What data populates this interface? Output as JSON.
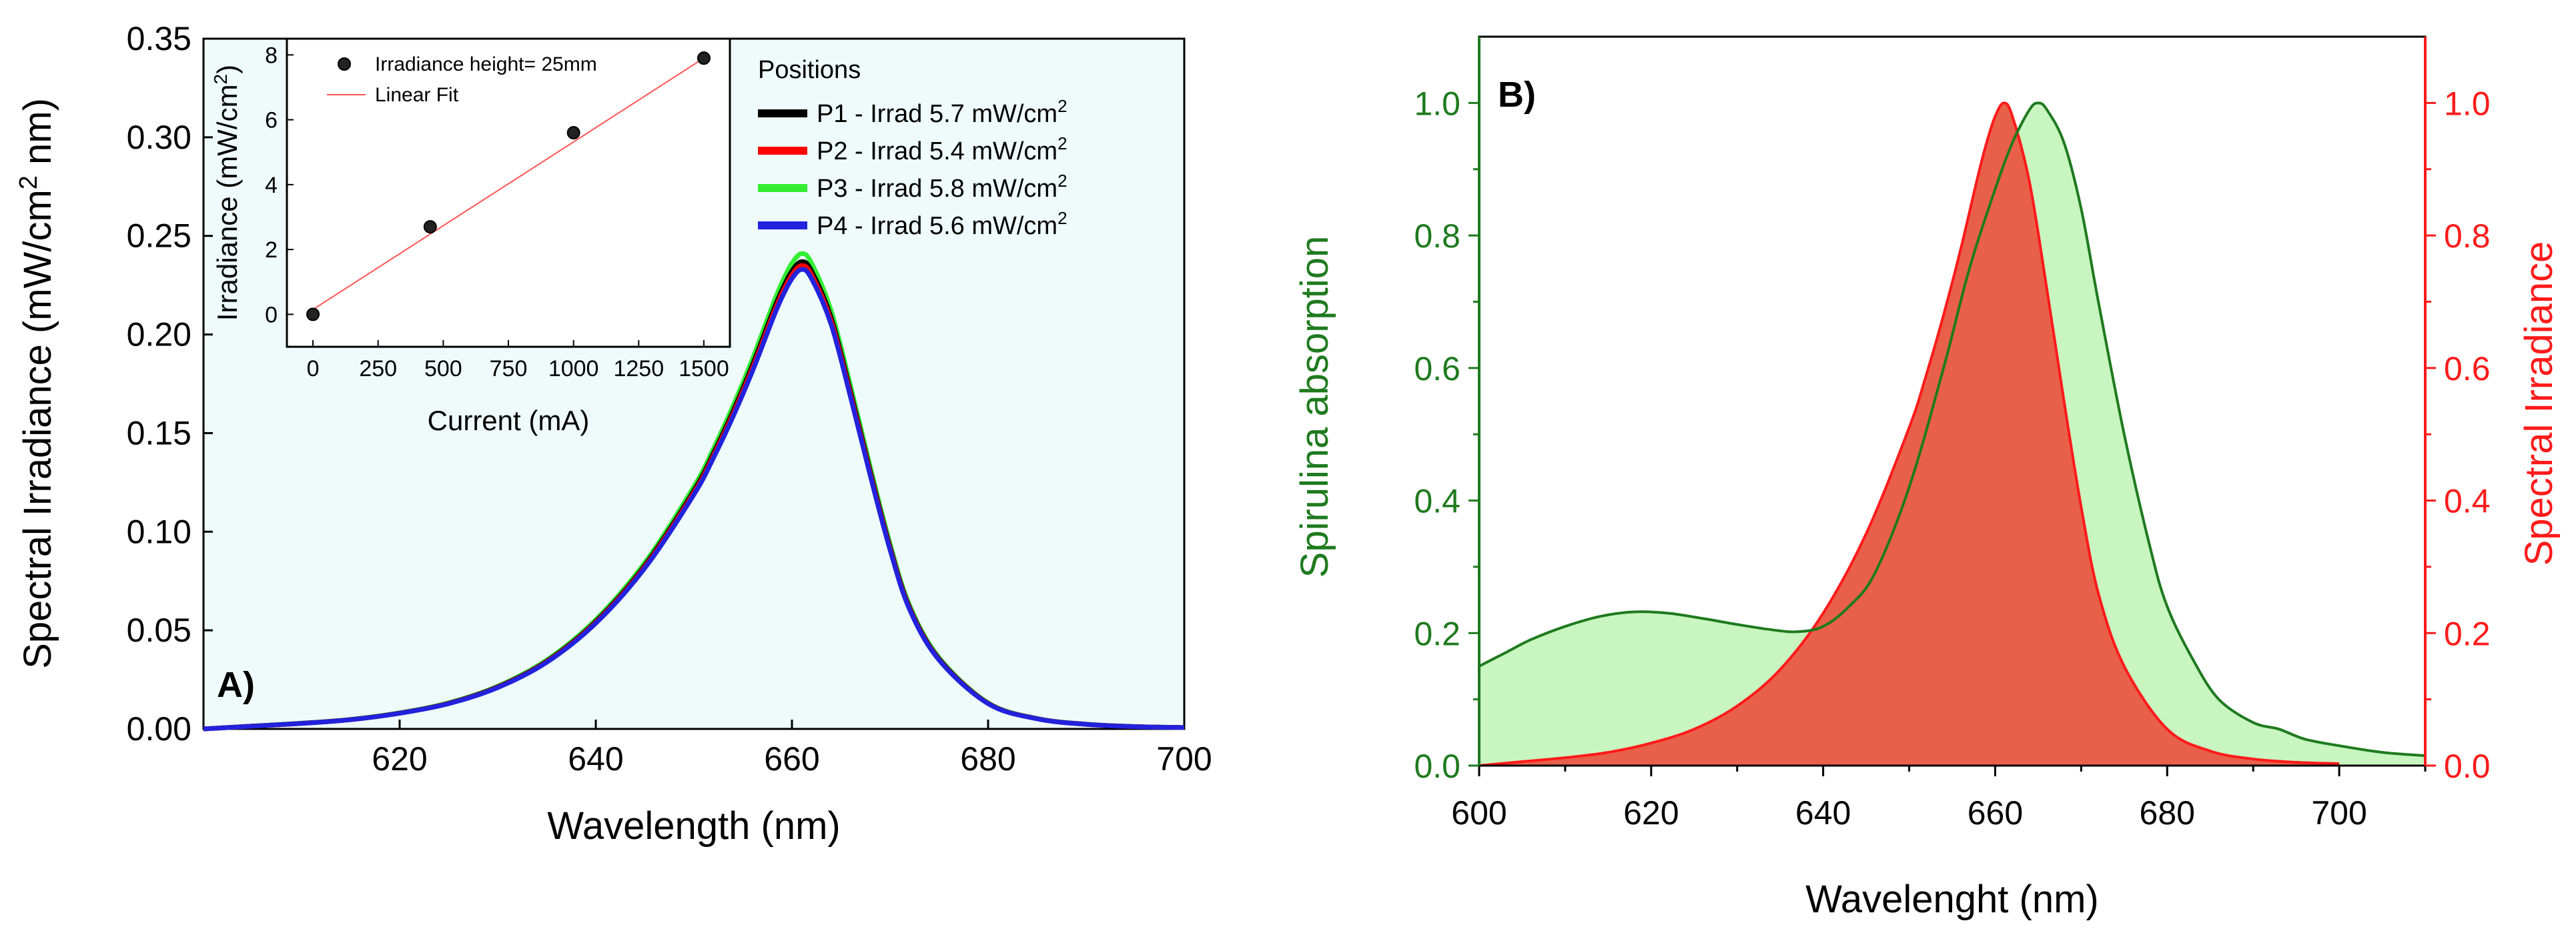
{
  "chart_data": [
    {
      "panel_label": "A)",
      "type": "line",
      "xlabel": "Wavelength (nm)",
      "ylabel_main": "Spectral Irradiance (mW/cm",
      "ylabel_sup": "2",
      "ylabel_tail": " nm)",
      "xlim": [
        600,
        700
      ],
      "ylim": [
        0,
        0.35
      ],
      "xticks": [
        "620",
        "640",
        "660",
        "680",
        "700"
      ],
      "xtick_values": [
        620,
        640,
        660,
        680,
        700
      ],
      "yticks": [
        "0.00",
        "0.05",
        "0.10",
        "0.15",
        "0.20",
        "0.25",
        "0.30",
        "0.35"
      ],
      "ytick_values": [
        0,
        0.05,
        0.1,
        0.15,
        0.2,
        0.25,
        0.3,
        0.35
      ],
      "legend_title": "Positions",
      "series": [
        {
          "name": "P1 - Irrad 5.7 mW/cm",
          "sup": "2",
          "color": "#000000",
          "peak": 0.237
        },
        {
          "name": "P2 - Irrad 5.4 mW/cm",
          "sup": "2",
          "color": "#ff0000",
          "peak": 0.235
        },
        {
          "name": "P3 - Irrad 5.8 mW/cm",
          "sup": "2",
          "color": "#33ee33",
          "peak": 0.241
        },
        {
          "name": "P4 - Irrad 5.6 mW/cm",
          "sup": "2",
          "color": "#2222dd",
          "peak": 0.233
        }
      ],
      "x": [
        600,
        605,
        610,
        615,
        620,
        625,
        630,
        635,
        640,
        645,
        650,
        652,
        654,
        656,
        658,
        659,
        660,
        661,
        662,
        664,
        666,
        668,
        670,
        672,
        675,
        680,
        685,
        690,
        695,
        700
      ],
      "profile": [
        0.0,
        0.006,
        0.012,
        0.02,
        0.034,
        0.055,
        0.09,
        0.145,
        0.23,
        0.35,
        0.51,
        0.59,
        0.68,
        0.78,
        0.89,
        0.94,
        0.98,
        1.0,
        0.98,
        0.88,
        0.72,
        0.55,
        0.39,
        0.26,
        0.15,
        0.055,
        0.022,
        0.01,
        0.005,
        0.003
      ],
      "inset": {
        "type": "scatter",
        "xlabel": "Current (mA)",
        "ylabel_main": "Irradiance (mW/cm",
        "ylabel_sup": "2",
        "ylabel_tail": ")",
        "xlim": [
          -100,
          1600
        ],
        "ylim": [
          -1,
          8.5
        ],
        "xticks": [
          "0",
          "250",
          "500",
          "750",
          "1000",
          "1250",
          "1500"
        ],
        "xtick_values": [
          0,
          250,
          500,
          750,
          1000,
          1250,
          1500
        ],
        "yticks": [
          "0",
          "2",
          "4",
          "6",
          "8"
        ],
        "ytick_values": [
          0,
          2,
          4,
          6,
          8
        ],
        "points_x": [
          0,
          450,
          1000,
          1500
        ],
        "points_y": [
          0,
          2.7,
          5.6,
          7.9
        ],
        "fit_start": [
          0,
          0.15
        ],
        "fit_end": [
          1500,
          7.9
        ],
        "legend_points": "Irradiance height= 25mm",
        "legend_fit": "Linear Fit",
        "fit_color": "#ff5555"
      }
    },
    {
      "panel_label": "B)",
      "type": "area",
      "xlabel": "Wavelenght (nm)",
      "ylabel_left": "Spirulina absorption",
      "ylabel_right": "Spectral Irradiance",
      "xlim": [
        600,
        710
      ],
      "ylim": [
        0,
        1.1
      ],
      "xticks": [
        "600",
        "620",
        "640",
        "660",
        "680",
        "700"
      ],
      "xtick_values": [
        600,
        620,
        640,
        660,
        680,
        700
      ],
      "yticks": [
        "0.0",
        "0.2",
        "0.4",
        "0.6",
        "0.8",
        "1.0"
      ],
      "ytick_values": [
        0,
        0.2,
        0.4,
        0.6,
        0.8,
        1.0
      ],
      "left_color": "#1e7a1e",
      "right_color": "#ff1a1a",
      "absorption": {
        "name": "Spirulina absorption",
        "fill": "#c8f5c0",
        "stroke": "#1e7a1e",
        "x": [
          600,
          603,
          606,
          610,
          614,
          618,
          622,
          626,
          630,
          634,
          637,
          640,
          643,
          646,
          650,
          654,
          657,
          660,
          662,
          664,
          665,
          666,
          668,
          670,
          672,
          675,
          678,
          680,
          683,
          686,
          690,
          693,
          696,
          700,
          705,
          710
        ],
        "y": [
          0.15,
          0.17,
          0.19,
          0.21,
          0.225,
          0.232,
          0.23,
          0.222,
          0.213,
          0.205,
          0.202,
          0.21,
          0.24,
          0.29,
          0.42,
          0.6,
          0.75,
          0.87,
          0.94,
          0.99,
          1.0,
          0.99,
          0.94,
          0.84,
          0.7,
          0.5,
          0.33,
          0.24,
          0.16,
          0.1,
          0.065,
          0.055,
          0.04,
          0.03,
          0.02,
          0.015
        ]
      },
      "irradiance": {
        "name": "Spectral Irradiance",
        "fill": "#e8604a",
        "stroke": "#ff1a1a",
        "x": [
          600,
          605,
          610,
          615,
          620,
          625,
          630,
          635,
          640,
          645,
          650,
          652,
          654,
          656,
          658,
          659,
          660,
          661,
          662,
          664,
          666,
          668,
          670,
          672,
          675,
          680,
          685,
          690,
          695,
          700
        ],
        "y": [
          0.0,
          0.006,
          0.012,
          0.02,
          0.034,
          0.055,
          0.09,
          0.145,
          0.23,
          0.35,
          0.51,
          0.59,
          0.68,
          0.78,
          0.89,
          0.94,
          0.98,
          1.0,
          0.98,
          0.88,
          0.72,
          0.55,
          0.39,
          0.26,
          0.15,
          0.055,
          0.022,
          0.01,
          0.005,
          0.003
        ]
      }
    }
  ]
}
